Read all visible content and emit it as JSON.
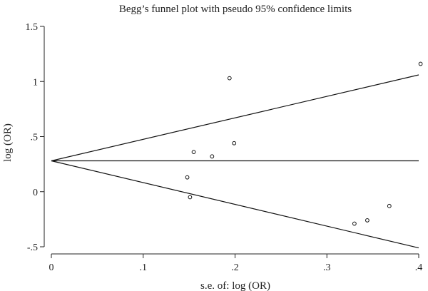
{
  "chart_data": {
    "type": "scatter",
    "title": "Begg’s funnel plot with pseudo 95% confidence limits",
    "xlabel": "s.e. of: log (OR)",
    "ylabel": "log (OR)",
    "xlim": [
      0,
      0.4
    ],
    "ylim": [
      -0.5,
      1.5
    ],
    "x_ticks": [
      {
        "value": 0,
        "label": "0"
      },
      {
        "value": 0.1,
        "label": ".1"
      },
      {
        "value": 0.2,
        "label": ".2"
      },
      {
        "value": 0.3,
        "label": ".3"
      },
      {
        "value": 0.4,
        "label": ".4"
      }
    ],
    "y_ticks": [
      {
        "value": -0.5,
        "label": "-.5"
      },
      {
        "value": 0,
        "label": "0"
      },
      {
        "value": 0.5,
        "label": ".5"
      },
      {
        "value": 1,
        "label": "1"
      },
      {
        "value": 1.5,
        "label": "1.5"
      }
    ],
    "points": [
      {
        "x": 0.148,
        "y": 0.13
      },
      {
        "x": 0.151,
        "y": -0.05
      },
      {
        "x": 0.155,
        "y": 0.36
      },
      {
        "x": 0.175,
        "y": 0.32
      },
      {
        "x": 0.194,
        "y": 1.03
      },
      {
        "x": 0.199,
        "y": 0.44
      },
      {
        "x": 0.33,
        "y": -0.29
      },
      {
        "x": 0.344,
        "y": -0.26
      },
      {
        "x": 0.368,
        "y": -0.13
      },
      {
        "x": 0.402,
        "y": 1.16
      }
    ],
    "pooled_estimate": 0.28,
    "confidence_limits": {
      "upper_at_xmax": 1.06,
      "lower_at_xmax": -0.51
    },
    "grid": false,
    "legend": "none"
  }
}
